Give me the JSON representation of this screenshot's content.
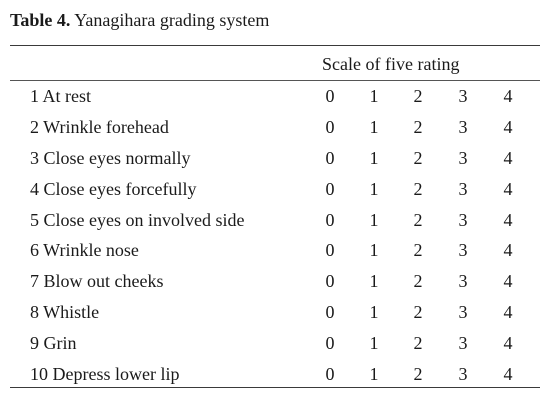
{
  "caption": {
    "label": "Table 4.",
    "title": "Yanagihara grading system"
  },
  "header": {
    "scale": "Scale of five rating"
  },
  "scores": [
    "0",
    "1",
    "2",
    "3",
    "4"
  ],
  "rows": [
    {
      "item": "1 At rest"
    },
    {
      "item": "2 Wrinkle forehead"
    },
    {
      "item": "3 Close eyes normally"
    },
    {
      "item": "4 Close eyes forcefully"
    },
    {
      "item": "5 Close eyes on involved side"
    },
    {
      "item": "6 Wrinkle nose"
    },
    {
      "item": "7 Blow out cheeks"
    },
    {
      "item": "8 Whistle"
    },
    {
      "item": "9 Grin"
    },
    {
      "item": "10 Depress lower lip"
    }
  ]
}
